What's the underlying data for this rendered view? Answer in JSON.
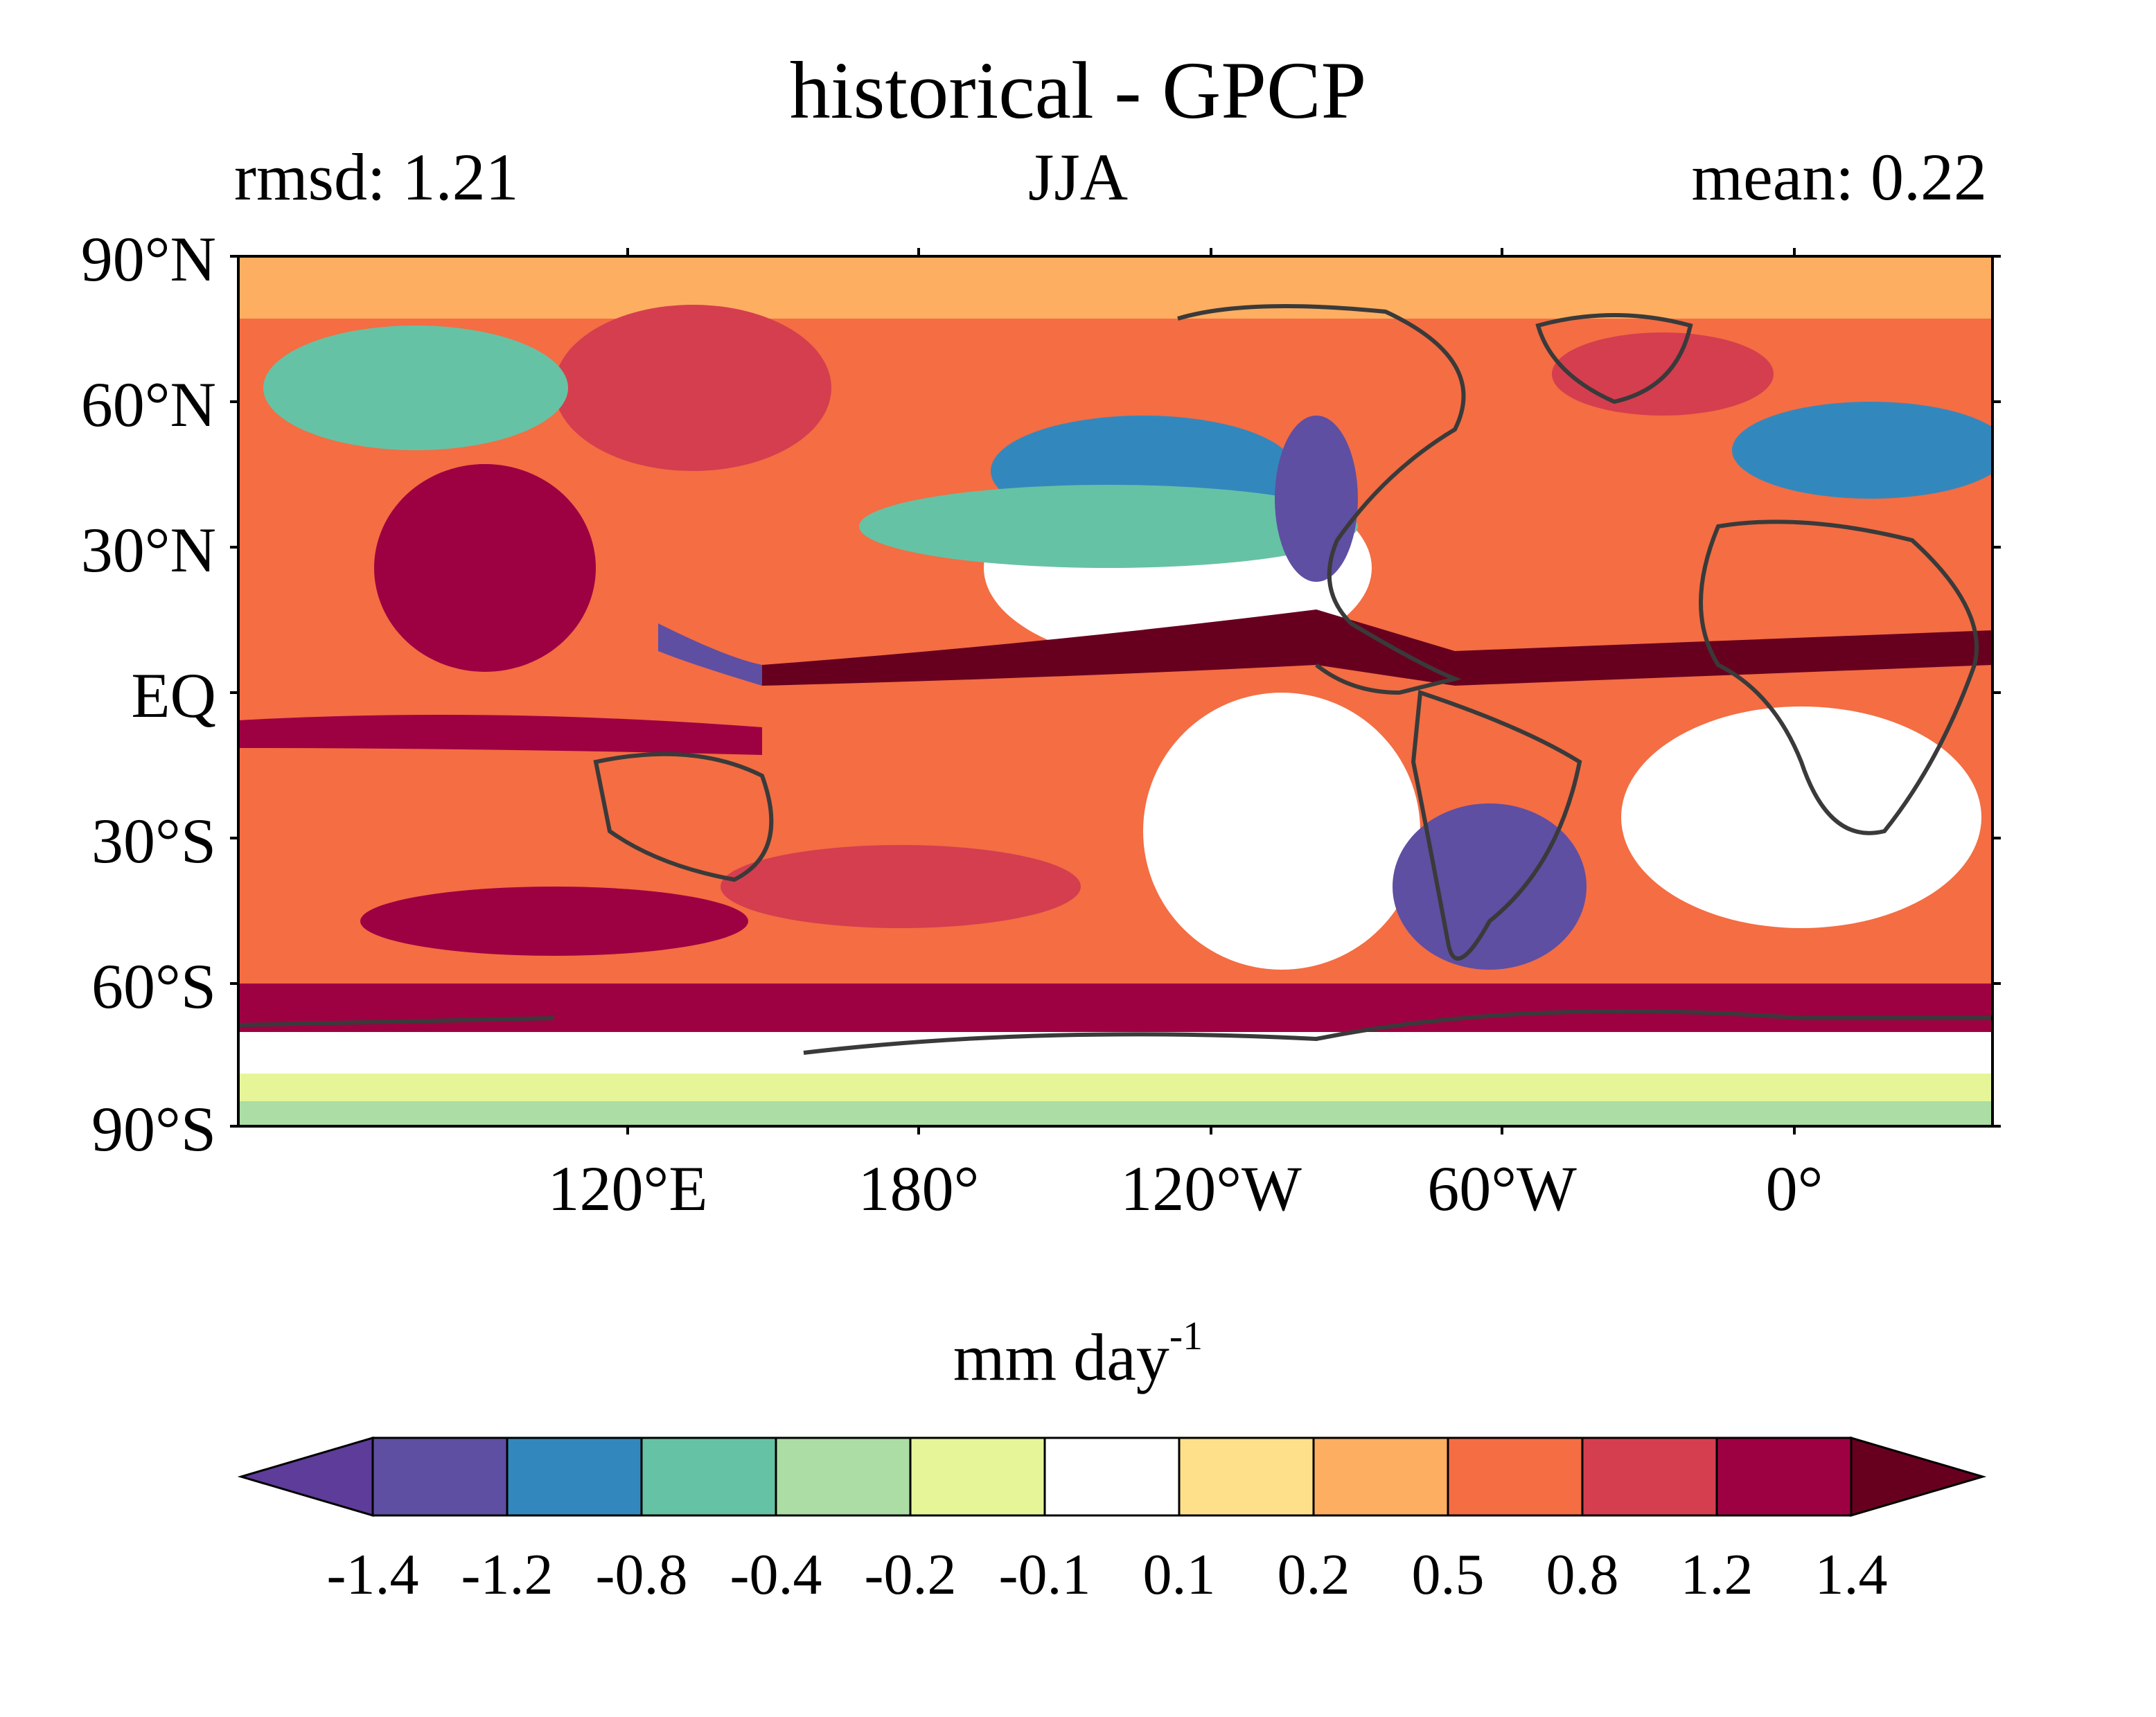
{
  "map": {
    "title": "historical - GPCP",
    "left_label": "rmsd: 1.21",
    "center_label": "JJA",
    "right_label": "mean: 0.22",
    "lat_ticks": [
      "90°N",
      "60°N",
      "30°N",
      "EQ",
      "30°S",
      "60°S",
      "90°S"
    ],
    "lon_ticks": [
      "120°E",
      "180°",
      "120°W",
      "60°W",
      "0°"
    ]
  },
  "colorbar": {
    "units": "mm day",
    "units_exponent": "-1",
    "levels": [
      "-1.4",
      "-1.2",
      "-0.8",
      "-0.4",
      "-0.2",
      "-0.1",
      "0.1",
      "0.2",
      "0.5",
      "0.8",
      "1.2",
      "1.4"
    ],
    "colors": [
      "#5e3c99",
      "#5e4fa2",
      "#3288bd",
      "#66c2a5",
      "#abdda4",
      "#e6f598",
      "#ffffff",
      "#fee08b",
      "#fdae61",
      "#f46d43",
      "#d53e4f",
      "#9e0142",
      "#67001f"
    ]
  }
}
